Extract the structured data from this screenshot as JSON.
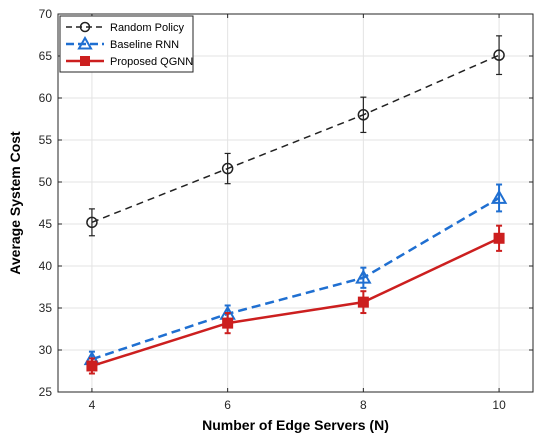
{
  "chart_data": {
    "type": "line",
    "title": "",
    "xlabel": "Number of Edge Servers (N)",
    "ylabel": "Average System Cost",
    "x": [
      4,
      6,
      8,
      10
    ],
    "xlim": [
      3.5,
      10.5
    ],
    "ylim": [
      25,
      70
    ],
    "xticks": [
      "4",
      "6",
      "8",
      "10"
    ],
    "yticks": [
      "25",
      "30",
      "35",
      "40",
      "45",
      "50",
      "55",
      "60",
      "65",
      "70"
    ],
    "grid": true,
    "legend_position": "top-left",
    "series": [
      {
        "name": "Random Policy",
        "values": [
          45.2,
          51.6,
          58.0,
          65.1
        ],
        "errors": [
          1.6,
          1.8,
          2.1,
          2.3
        ],
        "color": "#222222",
        "line_style": "dashed",
        "marker": "circle-open"
      },
      {
        "name": "Baseline RNN",
        "values": [
          28.9,
          34.3,
          38.6,
          48.1
        ],
        "errors": [
          0.9,
          1.0,
          1.2,
          1.6
        ],
        "color": "#1F6FD1",
        "line_style": "dashed",
        "marker": "triangle-open"
      },
      {
        "name": "Proposed QGNN",
        "values": [
          28.1,
          33.2,
          35.7,
          43.3
        ],
        "errors": [
          0.9,
          1.2,
          1.3,
          1.5
        ],
        "color": "#CC1F1F",
        "line_style": "solid",
        "marker": "square-filled"
      }
    ]
  }
}
